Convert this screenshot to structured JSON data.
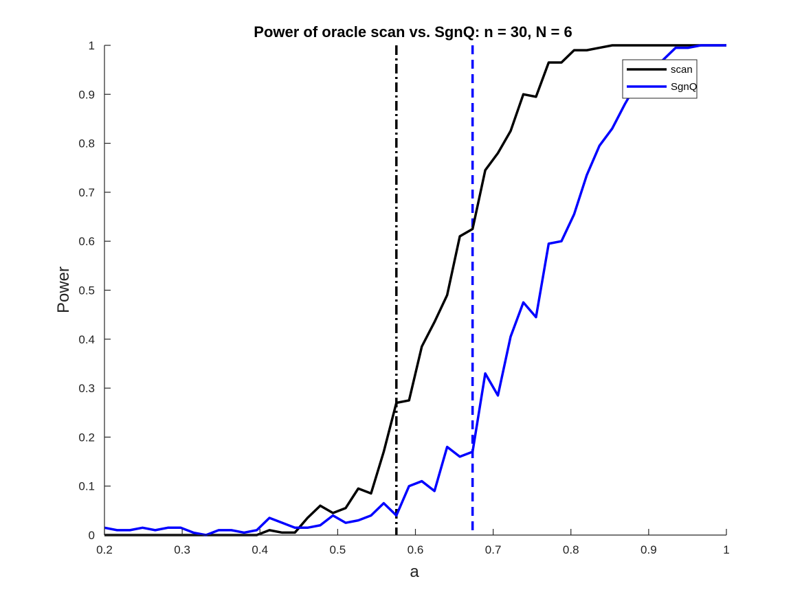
{
  "chart_data": {
    "type": "line",
    "title": "Power of oracle scan vs. SgnQ:  n = 30, N = 6",
    "xlabel": "a",
    "ylabel": "Power",
    "xlim": [
      0.2,
      1
    ],
    "ylim": [
      0,
      1
    ],
    "xticks": [
      "0.2",
      "0.3",
      "0.4",
      "0.5",
      "0.6",
      "0.7",
      "0.8",
      "0.9",
      "1"
    ],
    "yticks": [
      "0",
      "0.1",
      "0.2",
      "0.3",
      "0.4",
      "0.5",
      "0.6",
      "0.7",
      "0.8",
      "0.9",
      "1"
    ],
    "grid": false,
    "legend_position": "top-right",
    "x": [
      0.2,
      0.2163,
      0.2327,
      0.249,
      0.2653,
      0.2816,
      0.298,
      0.3143,
      0.3306,
      0.3469,
      0.3633,
      0.3796,
      0.3959,
      0.4122,
      0.4286,
      0.4449,
      0.4612,
      0.4776,
      0.4939,
      0.5102,
      0.5265,
      0.5429,
      0.5592,
      0.5755,
      0.5918,
      0.6082,
      0.6245,
      0.6408,
      0.6571,
      0.6735,
      0.6898,
      0.7061,
      0.7224,
      0.7388,
      0.7551,
      0.7714,
      0.7878,
      0.8041,
      0.8204,
      0.8367,
      0.8531,
      0.8694,
      0.8857,
      0.902,
      0.9184,
      0.9347,
      0.951,
      0.9673,
      0.9837,
      1.0
    ],
    "series": [
      {
        "name": "scan",
        "color": "#000000",
        "values": [
          0,
          0,
          0,
          0,
          0,
          0,
          0,
          0,
          0,
          0,
          0,
          0,
          0,
          0.01,
          0.005,
          0.005,
          0.035,
          0.06,
          0.045,
          0.055,
          0.095,
          0.085,
          0.17,
          0.27,
          0.275,
          0.385,
          0.435,
          0.49,
          0.61,
          0.625,
          0.745,
          0.78,
          0.825,
          0.9,
          0.895,
          0.965,
          0.965,
          0.99,
          0.99,
          0.995,
          1,
          1,
          1,
          1,
          1,
          1,
          1,
          1,
          1,
          1
        ]
      },
      {
        "name": "SgnQ",
        "color": "#0000ff",
        "values": [
          0.015,
          0.01,
          0.01,
          0.015,
          0.01,
          0.015,
          0.015,
          0.005,
          0,
          0.01,
          0.01,
          0.005,
          0.01,
          0.035,
          0.025,
          0.015,
          0.015,
          0.02,
          0.04,
          0.025,
          0.03,
          0.04,
          0.065,
          0.04,
          0.1,
          0.11,
          0.09,
          0.18,
          0.16,
          0.17,
          0.33,
          0.285,
          0.405,
          0.475,
          0.445,
          0.595,
          0.6,
          0.655,
          0.735,
          0.795,
          0.83,
          0.88,
          0.925,
          0.955,
          0.97,
          0.995,
          0.995,
          1,
          1,
          1
        ]
      }
    ],
    "reference_lines": [
      {
        "x": 0.5755,
        "color": "#000000",
        "style": "dash-dot"
      },
      {
        "x": 0.6735,
        "color": "#0000ff",
        "style": "dashed"
      }
    ]
  }
}
